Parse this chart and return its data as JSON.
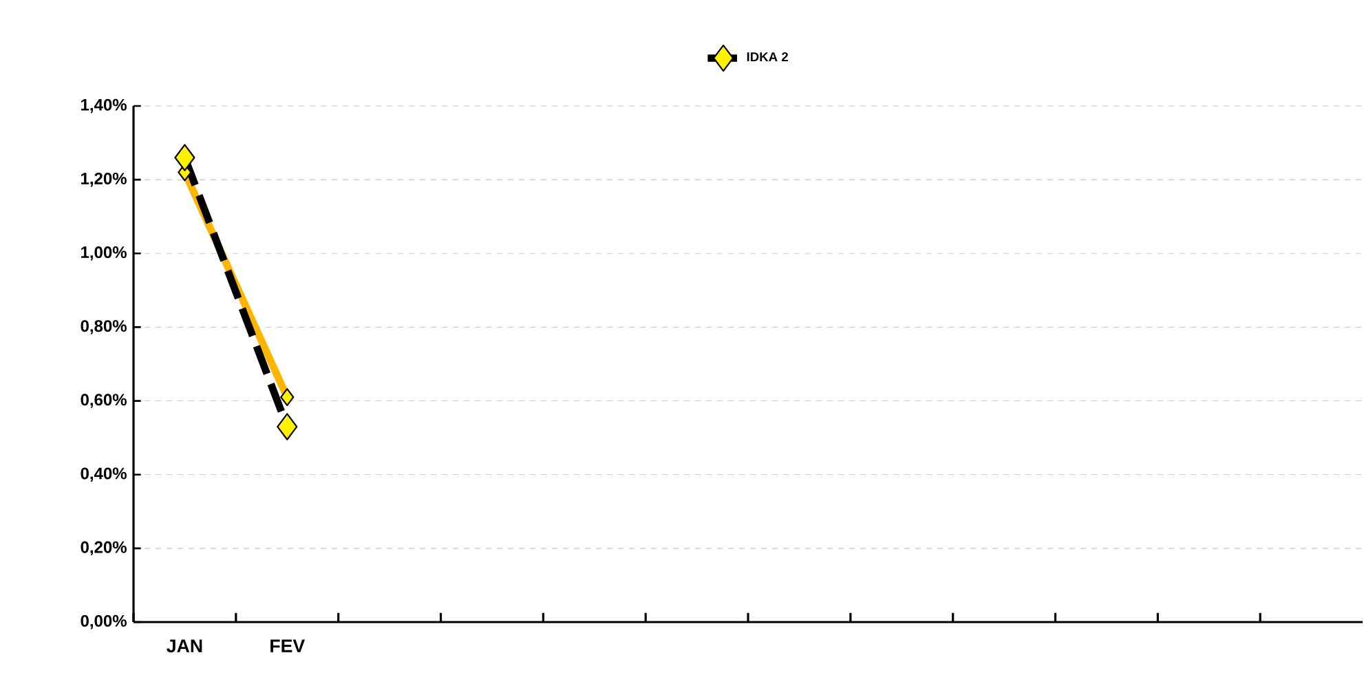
{
  "chart_data": {
    "type": "line",
    "categories": [
      "JAN",
      "FEV",
      null,
      null,
      null,
      null,
      null,
      null,
      null,
      null,
      null,
      null
    ],
    "series": [
      {
        "color": "#ffb400",
        "line_style": "solid",
        "marker": "diamond",
        "values": [
          1.22,
          0.61,
          null,
          null,
          null,
          null,
          null,
          null,
          null,
          null,
          null,
          null
        ]
      },
      {
        "name": "IDKA 2",
        "color": "#000000",
        "line_style": "dashed",
        "marker": "diamond",
        "values": [
          1.26,
          0.53,
          null,
          null,
          null,
          null,
          null,
          null,
          null,
          null,
          null,
          null
        ]
      }
    ],
    "ylim": [
      0,
      1.4
    ],
    "yticks": [
      {
        "value": 0,
        "label": "0,00%"
      },
      {
        "value": 0.2,
        "label": "0,20%"
      },
      {
        "value": 0.4,
        "label": "0,40%"
      },
      {
        "value": 0.6,
        "label": "0,60%"
      },
      {
        "value": 0.8,
        "label": "0,80%"
      },
      {
        "value": 1.0,
        "label": "1,00%"
      },
      {
        "value": 1.2,
        "label": "1,20%"
      },
      {
        "value": 1.4,
        "label": "1,40%"
      }
    ],
    "grid": "y",
    "legend": "top"
  }
}
